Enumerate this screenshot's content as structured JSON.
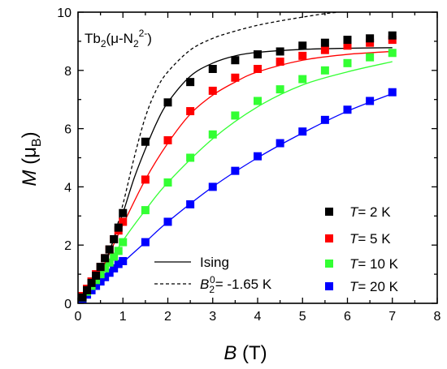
{
  "chart_data": {
    "type": "scatter",
    "sample_label": {
      "prefix": "Tb",
      "sub": "2",
      "mid": "(μ-N",
      "sub2": "2",
      "sup": "2-",
      "suffix": ")"
    },
    "xlabel": {
      "symbol": "B",
      "unit": " (T)"
    },
    "ylabel": {
      "symbol": "M",
      "unit_open": " (μ",
      "unit_sub": "B",
      "unit_close": ")"
    },
    "xlim": [
      0,
      8
    ],
    "ylim": [
      0,
      10
    ],
    "xticks": [
      0,
      1,
      2,
      3,
      4,
      5,
      6,
      7,
      8
    ],
    "yticks": [
      0,
      2,
      4,
      6,
      8,
      10
    ],
    "x_minor_step": 0.5,
    "y_minor_step": 1,
    "series": [
      {
        "name": {
          "prefix": "",
          "T": "T",
          "suffix": "= 2 K"
        },
        "color": "#000000",
        "x": [
          0.1,
          0.2,
          0.3,
          0.4,
          0.5,
          0.6,
          0.7,
          0.8,
          0.9,
          1.0,
          1.5,
          2.0,
          2.5,
          3.0,
          3.5,
          4.0,
          4.5,
          5.0,
          5.5,
          6.0,
          6.5,
          7.0
        ],
        "y": [
          0.2,
          0.45,
          0.7,
          0.95,
          1.25,
          1.55,
          1.85,
          2.2,
          2.6,
          3.1,
          5.55,
          6.9,
          7.6,
          8.05,
          8.35,
          8.55,
          8.65,
          8.85,
          8.95,
          9.05,
          9.1,
          9.2
        ]
      },
      {
        "name": {
          "prefix": "",
          "T": "T",
          "suffix": "= 5 K"
        },
        "color": "#ff0000",
        "x": [
          0.1,
          0.2,
          0.3,
          0.4,
          0.5,
          0.6,
          0.7,
          0.8,
          0.9,
          1.0,
          1.5,
          2.0,
          2.5,
          3.0,
          3.5,
          4.0,
          4.5,
          5.0,
          5.5,
          6.0,
          6.5,
          7.0
        ],
        "y": [
          0.25,
          0.5,
          0.75,
          1.0,
          1.25,
          1.55,
          1.85,
          2.2,
          2.5,
          2.8,
          4.25,
          5.6,
          6.6,
          7.3,
          7.75,
          8.05,
          8.3,
          8.5,
          8.7,
          8.85,
          8.95,
          9.05
        ]
      },
      {
        "name": {
          "prefix": "",
          "T": "T",
          "suffix": "= 10 K"
        },
        "color": "#33ff33",
        "x": [
          0.1,
          0.2,
          0.3,
          0.4,
          0.5,
          0.6,
          0.7,
          0.8,
          0.9,
          1.0,
          1.5,
          2.0,
          2.5,
          3.0,
          3.5,
          4.0,
          4.5,
          5.0,
          5.5,
          6.0,
          6.5,
          7.0
        ],
        "y": [
          0.2,
          0.4,
          0.6,
          0.8,
          1.0,
          1.2,
          1.4,
          1.6,
          1.8,
          2.1,
          3.2,
          4.15,
          5.0,
          5.8,
          6.45,
          6.95,
          7.35,
          7.7,
          8.0,
          8.25,
          8.45,
          8.6
        ]
      },
      {
        "name": {
          "prefix": "",
          "T": "T",
          "suffix": "= 20 K"
        },
        "color": "#0000ff",
        "x": [
          0.1,
          0.2,
          0.3,
          0.4,
          0.5,
          0.6,
          0.7,
          0.8,
          0.9,
          1.0,
          1.5,
          2.0,
          2.5,
          3.0,
          3.5,
          4.0,
          4.5,
          5.0,
          5.5,
          6.0,
          6.5,
          7.0
        ],
        "y": [
          0.15,
          0.3,
          0.45,
          0.6,
          0.75,
          0.9,
          1.05,
          1.2,
          1.35,
          1.45,
          2.1,
          2.8,
          3.4,
          4.0,
          4.55,
          5.05,
          5.5,
          5.9,
          6.3,
          6.65,
          6.95,
          7.25
        ]
      }
    ],
    "fit_curves": [
      {
        "label": "Ising",
        "style": "solid",
        "curves": [
          {
            "color": "#000000",
            "x": [
              0,
              0.25,
              0.5,
              0.75,
              1.0,
              1.25,
              1.5,
              1.75,
              2.0,
              2.5,
              3.0,
              3.5,
              4.0,
              5.0,
              6.0,
              7.0
            ],
            "y": [
              0,
              0.4,
              1.0,
              2.0,
              3.1,
              4.3,
              5.3,
              6.2,
              6.9,
              7.8,
              8.25,
              8.5,
              8.62,
              8.72,
              8.76,
              8.78
            ]
          },
          {
            "color": "#ff0000",
            "x": [
              0,
              0.5,
              1.0,
              1.5,
              2.0,
              2.5,
              3.0,
              3.5,
              4.0,
              5.0,
              6.0,
              7.0
            ],
            "y": [
              0,
              1.1,
              2.7,
              4.25,
              5.5,
              6.5,
              7.15,
              7.6,
              7.95,
              8.35,
              8.55,
              8.65
            ]
          },
          {
            "color": "#33ff33",
            "x": [
              0,
              0.5,
              1.0,
              1.5,
              2.0,
              3.0,
              4.0,
              5.0,
              6.0,
              7.0
            ],
            "y": [
              0,
              0.95,
              2.15,
              3.2,
              4.15,
              5.65,
              6.75,
              7.5,
              7.95,
              8.3
            ]
          },
          {
            "color": "#0000ff",
            "x": [
              0,
              0.5,
              1.0,
              1.5,
              2.0,
              3.0,
              4.0,
              5.0,
              6.0,
              7.0
            ],
            "y": [
              0,
              0.65,
              1.4,
              2.1,
              2.8,
              4.0,
              5.0,
              5.85,
              6.6,
              7.2
            ]
          }
        ]
      },
      {
        "label": {
          "sym": "B",
          "sub": "2",
          "sup": "0",
          "rest": "= -1.65 K"
        },
        "style": "dashed",
        "curves": [
          {
            "color": "#000000",
            "x": [
              0,
              0.25,
              0.5,
              0.75,
              1.0,
              1.25,
              1.5,
              1.75,
              2.0,
              2.5,
              3.0,
              3.5,
              4.0,
              4.5,
              5.0,
              5.5,
              5.8
            ],
            "y": [
              0,
              0.3,
              0.9,
              2.0,
              3.4,
              5.0,
              6.4,
              7.35,
              7.95,
              8.7,
              9.1,
              9.35,
              9.55,
              9.7,
              9.83,
              9.95,
              10.0
            ]
          }
        ]
      }
    ],
    "legend_position": "bottom-right"
  }
}
